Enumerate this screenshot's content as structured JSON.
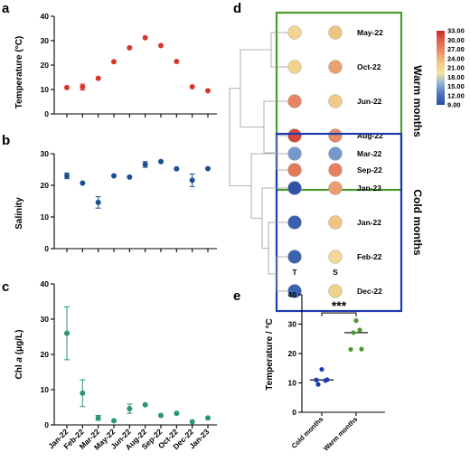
{
  "panels": {
    "a": {
      "letter": "a",
      "chart_data": {
        "type": "scatter",
        "ylabel": "Temperature (°C)",
        "ylim": [
          0,
          40
        ],
        "yticks": [
          "0",
          "10",
          "20",
          "30",
          "40"
        ],
        "categories": [
          "Jan-22",
          "Feb-22",
          "Mar-22",
          "May-22",
          "Jun-22",
          "Aug-22",
          "Sep-22",
          "Oct-22",
          "Dec-22",
          "Jan-23"
        ],
        "values": [
          10.8,
          11.0,
          14.6,
          21.4,
          27.1,
          31.2,
          28.0,
          21.5,
          11.1,
          9.5
        ],
        "errors": [
          0,
          1.2,
          0,
          0,
          0,
          0,
          0,
          0,
          0,
          0
        ],
        "color": "#d8362a"
      }
    },
    "b": {
      "letter": "b",
      "chart_data": {
        "type": "scatter",
        "ylabel": "Salinity",
        "ylim": [
          0,
          30
        ],
        "yticks": [
          "0",
          "10",
          "20",
          "30"
        ],
        "categories": [
          "Jan-22",
          "Feb-22",
          "Mar-22",
          "May-22",
          "Jun-22",
          "Aug-22",
          "Sep-22",
          "Oct-22",
          "Dec-22",
          "Jan-23"
        ],
        "values": [
          23.0,
          20.7,
          14.6,
          23.0,
          22.6,
          26.6,
          27.5,
          25.2,
          21.6,
          25.3
        ],
        "errors": [
          0.9,
          0,
          1.8,
          0,
          0,
          0.9,
          0,
          0,
          2.0,
          0
        ],
        "color": "#1c4f8f"
      }
    },
    "c": {
      "letter": "c",
      "chart_data": {
        "type": "scatter",
        "ylabel_prefix": "Chl ",
        "ylabel_italic": "a",
        "ylabel_suffix": " (μg/L)",
        "ylim": [
          0,
          40
        ],
        "yticks": [
          "0",
          "10",
          "20",
          "30",
          "40"
        ],
        "categories": [
          "Jan-22",
          "Feb-22",
          "Mar-22",
          "May-22",
          "Jun-22",
          "Aug-22",
          "Sep-22",
          "Oct-22",
          "Dec-22",
          "Jan-23"
        ],
        "values": [
          26.0,
          9.0,
          2.0,
          1.2,
          4.6,
          5.7,
          2.7,
          3.3,
          0.9,
          2.0
        ],
        "errors": [
          7.5,
          3.8,
          0.7,
          0,
          1.3,
          0,
          0,
          0,
          0,
          0
        ],
        "color": "#2a9868"
      }
    },
    "d": {
      "letter": "d",
      "chart_data": {
        "type": "heatmap",
        "columns": [
          "T",
          "S"
        ],
        "colorbar": {
          "min": 9.0,
          "max": 33.0,
          "ticks": [
            "33.00",
            "30.00",
            "27.00",
            "24.00",
            "21.00",
            "18.00",
            "15.00",
            "12.00",
            "9.00"
          ],
          "colors": [
            "#2b4ea3",
            "#4a72b8",
            "#8fb0d8",
            "#f4e3a6",
            "#f0c985",
            "#e8906a",
            "#e06650",
            "#c82828"
          ]
        },
        "groups": [
          {
            "name": "Warm months",
            "color": "#4f9a2d",
            "rows": [
              {
                "label": "May-22",
                "T": 21.4,
                "S": 23.0
              },
              {
                "label": "Oct-22",
                "T": 21.5,
                "S": 25.2
              },
              {
                "label": "Jun-22",
                "T": 27.1,
                "S": 22.6
              },
              {
                "label": "Aug-22",
                "T": 31.2,
                "S": 26.6
              },
              {
                "label": "Sep-22",
                "T": 28.0,
                "S": 27.5
              }
            ]
          },
          {
            "name": "Cold months",
            "color": "#1d3bb0",
            "rows": [
              {
                "label": "Mar-22",
                "T": 14.6,
                "S": 14.6
              },
              {
                "label": "Jan-23",
                "T": 9.5,
                "S": 25.3
              },
              {
                "label": "Jan-22",
                "T": 10.8,
                "S": 23.0
              },
              {
                "label": "Feb-22",
                "T": 11.0,
                "S": 20.7
              },
              {
                "label": "Dec-22",
                "T": 11.1,
                "S": 21.6
              }
            ]
          }
        ]
      }
    },
    "e": {
      "letter": "e",
      "chart_data": {
        "type": "scatter",
        "ylabel": "Temperature / °C",
        "ylim": [
          0,
          40
        ],
        "yticks": [
          "0",
          "10",
          "20",
          "30",
          "40"
        ],
        "categories": [
          "Cold months",
          "Warm months"
        ],
        "series": [
          {
            "name": "Cold months",
            "values": [
              9.5,
              10.8,
              11.0,
              11.1,
              14.6
            ],
            "median": 11.0,
            "color": "#1d3bb0"
          },
          {
            "name": "Warm months",
            "values": [
              21.4,
              21.5,
              27.1,
              28.0,
              31.2
            ],
            "median": 27.1,
            "color": "#4f9a2d"
          }
        ],
        "significance": "***"
      }
    }
  }
}
